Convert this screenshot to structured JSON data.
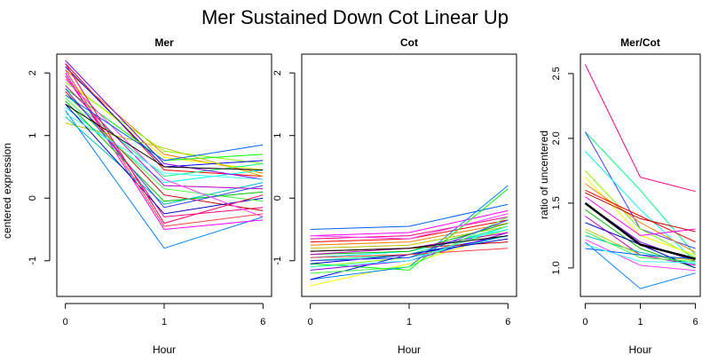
{
  "figure": {
    "title": "Mer Sustained Down Cot Linear Up"
  },
  "chart_data": [
    {
      "type": "line",
      "title": "Mer",
      "xlabel": "Hour",
      "ylabel": "centered expression",
      "categories": [
        "0",
        "1",
        "6"
      ],
      "ylim": [
        -1.57,
        2.3
      ],
      "yticks": [
        -1,
        0,
        1,
        2
      ],
      "series": [
        {
          "color": "#ff0000",
          "values": [
            2.15,
            0.45,
            0.35
          ]
        },
        {
          "color": "#ff8000",
          "values": [
            2.05,
            0.7,
            0.4
          ]
        },
        {
          "color": "#ffff00",
          "values": [
            1.9,
            0.65,
            0.45
          ]
        },
        {
          "color": "#80ff00",
          "values": [
            1.85,
            0.75,
            0.55
          ]
        },
        {
          "color": "#00ff00",
          "values": [
            1.75,
            0.6,
            0.7
          ]
        },
        {
          "color": "#00ff80",
          "values": [
            1.65,
            0.35,
            0.55
          ]
        },
        {
          "color": "#00ffff",
          "values": [
            1.45,
            0.25,
            0.45
          ]
        },
        {
          "color": "#0080ff",
          "values": [
            1.4,
            -0.8,
            -0.3
          ]
        },
        {
          "color": "#0000ff",
          "values": [
            2.1,
            0.5,
            0.6
          ]
        },
        {
          "color": "#8000ff",
          "values": [
            2.2,
            0.55,
            0.3
          ]
        },
        {
          "color": "#ff00ff",
          "values": [
            2.0,
            -0.5,
            -0.35
          ]
        },
        {
          "color": "#ff0080",
          "values": [
            1.95,
            -0.3,
            -0.15
          ]
        },
        {
          "color": "#c00000",
          "values": [
            1.7,
            0.05,
            -0.2
          ]
        },
        {
          "color": "#c0c000",
          "values": [
            1.2,
            0.8,
            0.35
          ]
        },
        {
          "color": "#00c000",
          "values": [
            1.55,
            -0.05,
            0.1
          ]
        },
        {
          "color": "#00c0c0",
          "values": [
            1.3,
            -0.1,
            0.25
          ]
        },
        {
          "color": "#0000c0",
          "values": [
            1.5,
            -0.25,
            0.0
          ]
        },
        {
          "color": "#c000c0",
          "values": [
            1.8,
            0.2,
            0.15
          ]
        },
        {
          "color": "#ff4040",
          "values": [
            2.05,
            -0.45,
            -0.25
          ]
        },
        {
          "color": "#40ff40",
          "values": [
            1.6,
            0.15,
            -0.05
          ]
        },
        {
          "color": "#4040ff",
          "values": [
            1.75,
            -0.15,
            0.2
          ]
        },
        {
          "color": "#ff40ff",
          "values": [
            1.9,
            0.3,
            -0.3
          ]
        },
        {
          "color": "#40ffff",
          "values": [
            1.35,
            0.4,
            0.3
          ]
        },
        {
          "color": "#000000",
          "values": [
            1.5,
            0.5,
            0.45
          ]
        },
        {
          "color": "#0060ff",
          "values": [
            1.65,
            0.6,
            0.85
          ]
        },
        {
          "color": "#ff0060",
          "values": [
            2.15,
            -0.4,
            0.05
          ]
        }
      ]
    },
    {
      "type": "line",
      "title": "Cot",
      "xlabel": "Hour",
      "ylabel": "",
      "categories": [
        "0",
        "1",
        "6"
      ],
      "ylim": [
        -1.57,
        2.3
      ],
      "yticks": [
        -1,
        0,
        1,
        2
      ],
      "series": [
        {
          "color": "#0060ff",
          "values": [
            -0.5,
            -0.45,
            -0.1
          ]
        },
        {
          "color": "#ff00ff",
          "values": [
            -0.6,
            -0.55,
            -0.2
          ]
        },
        {
          "color": "#ff0080",
          "values": [
            -0.65,
            -0.6,
            -0.3
          ]
        },
        {
          "color": "#ff0000",
          "values": [
            -0.7,
            -0.65,
            -0.35
          ]
        },
        {
          "color": "#ff8000",
          "values": [
            -0.75,
            -0.7,
            -0.4
          ]
        },
        {
          "color": "#ffff00",
          "values": [
            -1.4,
            -1.05,
            -0.55
          ]
        },
        {
          "color": "#80ff00",
          "values": [
            -1.1,
            -0.95,
            -0.5
          ]
        },
        {
          "color": "#00ff00",
          "values": [
            -1.05,
            -1.15,
            0.15
          ]
        },
        {
          "color": "#00ff80",
          "values": [
            -1.0,
            -0.9,
            -0.45
          ]
        },
        {
          "color": "#00ffff",
          "values": [
            -0.95,
            -0.85,
            -0.5
          ]
        },
        {
          "color": "#0080ff",
          "values": [
            -1.3,
            -1.1,
            0.2
          ]
        },
        {
          "color": "#0000ff",
          "values": [
            -1.3,
            -0.9,
            -0.6
          ]
        },
        {
          "color": "#8000ff",
          "values": [
            -1.15,
            -1.0,
            -0.55
          ]
        },
        {
          "color": "#c00000",
          "values": [
            -0.85,
            -0.8,
            -0.7
          ]
        },
        {
          "color": "#c0c000",
          "values": [
            -0.8,
            -0.75,
            -0.45
          ]
        },
        {
          "color": "#00c000",
          "values": [
            -0.9,
            -0.85,
            -0.4
          ]
        },
        {
          "color": "#00c0c0",
          "values": [
            -1.0,
            -0.95,
            -0.6
          ]
        },
        {
          "color": "#0000c0",
          "values": [
            -1.05,
            -0.9,
            -0.65
          ]
        },
        {
          "color": "#c000c0",
          "values": [
            -0.9,
            -0.8,
            -0.55
          ]
        },
        {
          "color": "#ff4040",
          "values": [
            -0.95,
            -0.9,
            -0.8
          ]
        },
        {
          "color": "#40ff40",
          "values": [
            -1.2,
            -1.1,
            -0.3
          ]
        },
        {
          "color": "#4040ff",
          "values": [
            -1.0,
            -0.95,
            -0.35
          ]
        },
        {
          "color": "#ff40ff",
          "values": [
            -0.6,
            -0.65,
            -0.25
          ]
        },
        {
          "color": "#40ffff",
          "values": [
            -1.1,
            -1.0,
            -0.45
          ]
        },
        {
          "color": "#000000",
          "values": [
            -0.85,
            -0.8,
            -0.6
          ]
        }
      ]
    },
    {
      "type": "line",
      "title": "Mer/Cot",
      "xlabel": "Hour",
      "ylabel": "ratio of uncentered",
      "categories": [
        "0",
        "1",
        "6"
      ],
      "ylim": [
        0.78,
        2.65
      ],
      "yticks": [
        1.0,
        1.5,
        2.0,
        2.5
      ],
      "series": [
        {
          "color": "#ff0080",
          "values": [
            2.57,
            1.7,
            1.59
          ]
        },
        {
          "color": "#00ff80",
          "values": [
            2.05,
            1.6,
            1.1
          ]
        },
        {
          "color": "#4040ff",
          "values": [
            2.05,
            1.3,
            1.15
          ]
        },
        {
          "color": "#00ffff",
          "values": [
            1.9,
            1.45,
            1.05
          ]
        },
        {
          "color": "#80ff00",
          "values": [
            1.75,
            1.3,
            1.08
          ]
        },
        {
          "color": "#ffff00",
          "values": [
            1.7,
            1.25,
            1.1
          ]
        },
        {
          "color": "#ff8000",
          "values": [
            1.65,
            1.35,
            1.12
          ]
        },
        {
          "color": "#ff0000",
          "values": [
            1.6,
            1.4,
            1.2
          ]
        },
        {
          "color": "#ff00ff",
          "values": [
            1.55,
            1.25,
            1.3
          ]
        },
        {
          "color": "#8000ff",
          "values": [
            1.5,
            1.2,
            1.05
          ]
        },
        {
          "color": "#00c000",
          "values": [
            1.45,
            1.15,
            1.0
          ]
        },
        {
          "color": "#c000c0",
          "values": [
            1.4,
            1.1,
            1.02
          ]
        },
        {
          "color": "#0080ff",
          "values": [
            1.2,
            0.84,
            0.96
          ]
        },
        {
          "color": "#00c0c0",
          "values": [
            1.25,
            1.12,
            1.03
          ]
        },
        {
          "color": "#c0c000",
          "values": [
            1.3,
            1.1,
            1.06
          ]
        },
        {
          "color": "#0000c0",
          "values": [
            1.35,
            1.18,
            1.0
          ]
        },
        {
          "color": "#ff40ff",
          "values": [
            1.22,
            1.02,
            0.98
          ]
        },
        {
          "color": "#40ff40",
          "values": [
            1.28,
            1.08,
            1.05
          ]
        },
        {
          "color": "#c00000",
          "values": [
            1.58,
            1.38,
            1.28
          ]
        },
        {
          "color": "#0060ff",
          "values": [
            1.15,
            1.1,
            1.07
          ]
        },
        {
          "color": "#40ffff",
          "values": [
            1.18,
            1.05,
            1.04
          ]
        },
        {
          "color": "#000000",
          "width": 2.5,
          "values": [
            1.5,
            1.18,
            1.07
          ]
        }
      ]
    }
  ]
}
